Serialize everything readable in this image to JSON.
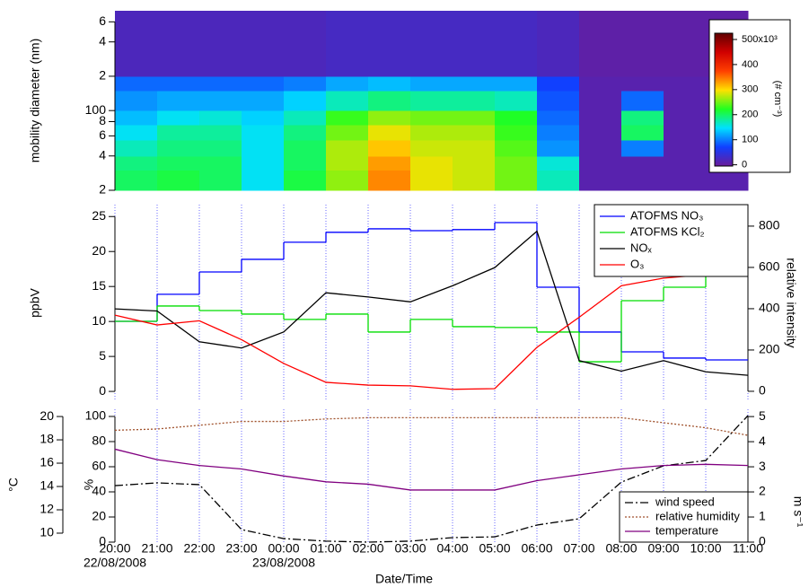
{
  "x_axis": {
    "categories": [
      "20:00",
      "21:00",
      "22:00",
      "23:00",
      "00:00",
      "01:00",
      "02:00",
      "03:00",
      "04:00",
      "05:00",
      "06:00",
      "07:00",
      "08:00",
      "09:00",
      "10:00",
      "11:00"
    ],
    "dates": [
      "22/08/2008",
      null,
      null,
      null,
      "23/08/2008",
      null,
      null,
      null,
      null,
      null,
      null,
      null,
      null,
      null,
      null,
      null
    ],
    "label": "Date/Time",
    "grid": true
  },
  "chart_data": [
    {
      "type": "heatmap",
      "ylabel": "mobility diameter (nm)",
      "yscale": "log",
      "ylim": [
        20,
        750
      ],
      "yticks": [
        {
          "value": 20,
          "label": "2"
        },
        {
          "value": 40,
          "label": "4"
        },
        {
          "value": 60,
          "label": "6"
        },
        {
          "value": 80,
          "label": "8"
        },
        100,
        {
          "value": 200,
          "label": "2"
        },
        {
          "value": 400,
          "label": "4"
        },
        {
          "value": 600,
          "label": "6"
        }
      ],
      "bins": [
        20,
        30,
        40,
        55,
        75,
        100,
        150,
        200,
        750
      ],
      "values": [
        [
          200,
          190,
          170,
          150,
          130,
          110,
          90,
          20
        ],
        [
          210,
          200,
          190,
          180,
          150,
          120,
          90,
          20
        ],
        [
          200,
          200,
          190,
          180,
          160,
          120,
          90,
          20
        ],
        [
          150,
          150,
          150,
          150,
          140,
          120,
          90,
          20
        ],
        [
          210,
          200,
          200,
          190,
          170,
          140,
          100,
          20
        ],
        [
          260,
          270,
          270,
          250,
          230,
          170,
          120,
          25
        ],
        [
          340,
          330,
          310,
          290,
          260,
          190,
          130,
          25
        ],
        [
          290,
          290,
          280,
          270,
          250,
          180,
          120,
          25
        ],
        [
          280,
          280,
          280,
          270,
          250,
          180,
          120,
          25
        ],
        [
          250,
          250,
          240,
          230,
          220,
          170,
          120,
          25
        ],
        [
          170,
          160,
          110,
          100,
          90,
          80,
          70,
          20
        ],
        [
          10,
          10,
          10,
          10,
          10,
          10,
          10,
          5
        ],
        [
          10,
          10,
          100,
          200,
          190,
          90,
          10,
          5
        ],
        [
          10,
          10,
          10,
          10,
          10,
          10,
          10,
          5
        ],
        [
          10,
          10,
          10,
          10,
          10,
          10,
          10,
          5
        ]
      ],
      "colorbar": {
        "label": "(# cm⁻³)",
        "clim": [
          -5,
          525
        ],
        "ticks": [
          0,
          100,
          200,
          300,
          400,
          {
            "value": 500,
            "label": "500x10³"
          }
        ],
        "colors": [
          "#6a1b9a",
          "#1040ff",
          "#00e0ff",
          "#20ff20",
          "#ffe000",
          "#ff4000",
          "#d00000",
          "#600000"
        ]
      }
    },
    {
      "type": "line",
      "ylabel": "ppbV",
      "y2label": "relative intensity",
      "ylim": [
        -1.4,
        26.7
      ],
      "yticks": [
        0,
        5,
        10,
        15,
        20,
        25
      ],
      "y2lim": [
        -48,
        904
      ],
      "y2ticks": [
        0,
        200,
        400,
        600,
        800
      ],
      "legend": "top-right",
      "series": [
        {
          "name": "ATOFMS NO₃",
          "color": "#0000ff",
          "axis": "y2",
          "step": true,
          "values": [
            339,
            470,
            578,
            639,
            722,
            770,
            787,
            778,
            783,
            817,
            504,
            287,
            191,
            161,
            152,
            null
          ]
        },
        {
          "name": "ATOFMS KCl₂",
          "color": "#00dd00",
          "axis": "y2",
          "step": true,
          "values": [
            339,
            413,
            391,
            374,
            348,
            374,
            287,
            348,
            313,
            309,
            287,
            143,
            439,
            504,
            704,
            null
          ]
        },
        {
          "name": "NOₓ",
          "color": "#000000",
          "values": [
            11.8,
            11.5,
            7.1,
            6.2,
            8.5,
            14.1,
            13.5,
            12.8,
            15.1,
            17.7,
            22.9,
            4.4,
            2.9,
            4.4,
            2.8,
            2.3
          ]
        },
        {
          "name": "O₃",
          "color": "#ff0000",
          "values": [
            10.9,
            9.5,
            10.1,
            7.4,
            4.0,
            1.3,
            0.9,
            0.8,
            0.3,
            0.4,
            6.3,
            10.6,
            15.1,
            16.2,
            16.7,
            17.1
          ]
        }
      ]
    },
    {
      "type": "line",
      "ylabel": "%",
      "ylim": [
        0,
        105.7
      ],
      "yticks": [
        0,
        20,
        40,
        60,
        80,
        100
      ],
      "y2label": "m s⁻¹",
      "y2lim": [
        0,
        5.29
      ],
      "y2ticks": [
        0,
        1,
        2,
        3,
        4,
        5
      ],
      "y3label": "°C",
      "y3lim": [
        9.23,
        20.62
      ],
      "y3ticks": [
        10,
        12,
        14,
        16,
        18,
        20
      ],
      "legend": "bottom-right",
      "series": [
        {
          "name": "wind speed",
          "color": "#000000",
          "axis": "y2",
          "style": "dashdot",
          "values": [
            2.25,
            2.36,
            2.29,
            0.5,
            0.14,
            0.04,
            0.0,
            0.04,
            0.18,
            0.21,
            0.68,
            0.93,
            2.39,
            3.04,
            3.25,
            5.04
          ]
        },
        {
          "name": "relative humidity",
          "color": "#a0522d",
          "axis": "y",
          "style": "dotted",
          "values": [
            89,
            90,
            93,
            96,
            96,
            98,
            99,
            99,
            99,
            99,
            99,
            99,
            99,
            95,
            91,
            85
          ]
        },
        {
          "name": "temperature",
          "color": "#800080",
          "axis": "y3",
          "style": "solid",
          "values": [
            17.2,
            16.3,
            15.8,
            15.5,
            14.9,
            14.4,
            14.2,
            13.7,
            13.7,
            13.7,
            14.5,
            15.0,
            15.5,
            15.8,
            15.9,
            15.8
          ]
        }
      ]
    }
  ]
}
